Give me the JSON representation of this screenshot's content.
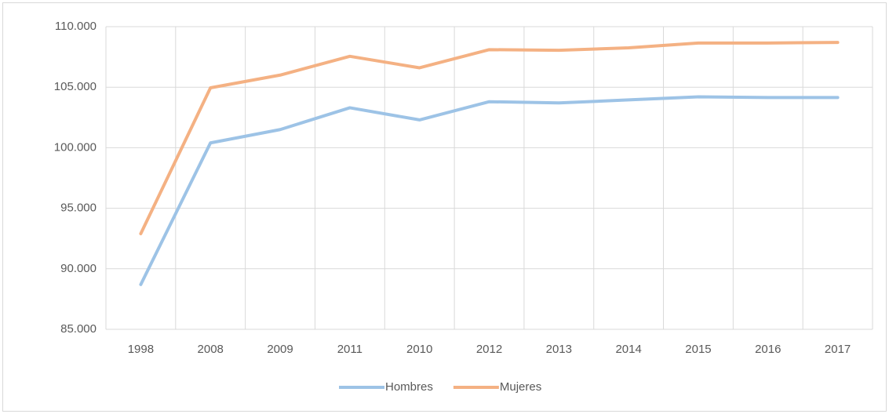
{
  "chart_data": {
    "type": "line",
    "categories": [
      "1998",
      "2008",
      "2009",
      "2011",
      "2010",
      "2012",
      "2013",
      "2014",
      "2015",
      "2016",
      "2017"
    ],
    "series": [
      {
        "name": "Hombres",
        "color": "#9dc3e6",
        "values": [
          88700,
          100400,
          101500,
          103300,
          102300,
          103800,
          103700,
          103950,
          104200,
          104150,
          104150
        ]
      },
      {
        "name": "Mujeres",
        "color": "#f4b183",
        "values": [
          92900,
          104950,
          106000,
          107550,
          106600,
          108100,
          108050,
          108250,
          108650,
          108650,
          108700
        ]
      }
    ],
    "ylim": [
      85000,
      110000
    ],
    "yticks": [
      {
        "value": 85000,
        "label": "85.000"
      },
      {
        "value": 90000,
        "label": "90.000"
      },
      {
        "value": 95000,
        "label": "95.000"
      },
      {
        "value": 100000,
        "label": "100.000"
      },
      {
        "value": 105000,
        "label": "105.000"
      },
      {
        "value": 110000,
        "label": "110.000"
      }
    ],
    "grid": true,
    "legend": "bottom"
  }
}
